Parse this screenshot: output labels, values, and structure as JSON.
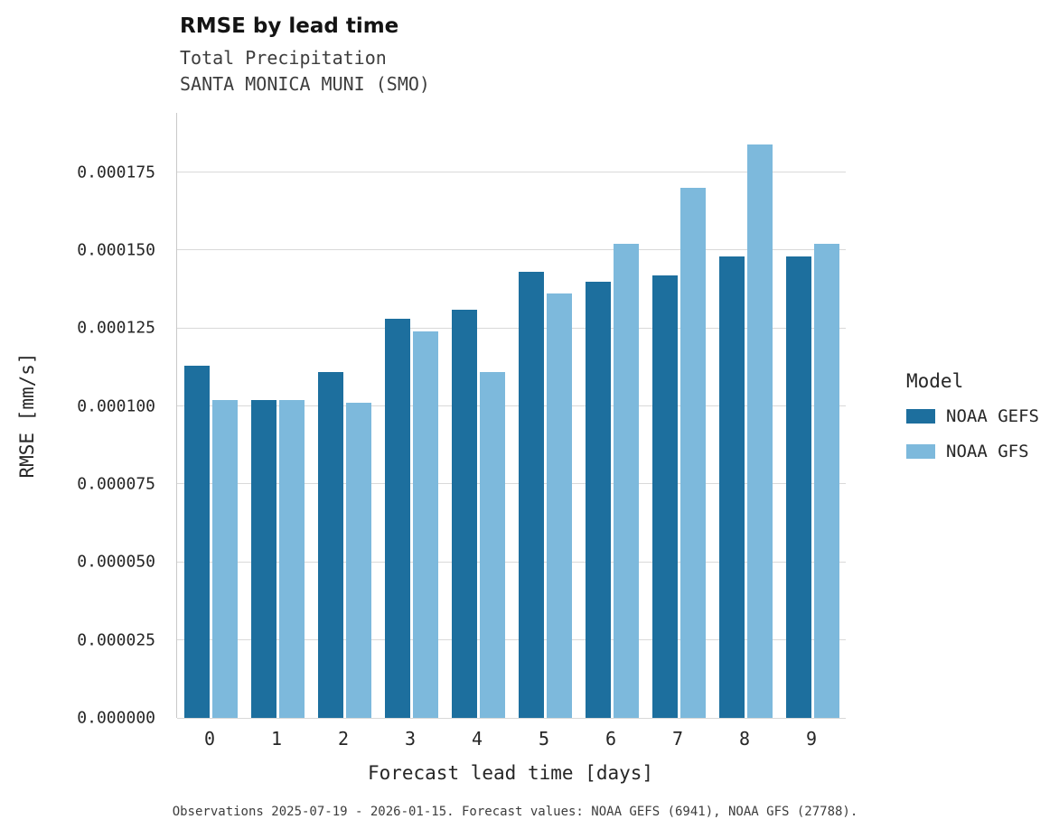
{
  "chart_data": {
    "type": "bar",
    "title": "RMSE by lead time",
    "subtitle1": "Total Precipitation",
    "subtitle2": "SANTA MONICA MUNI (SMO)",
    "xlabel": "Forecast lead time [days]",
    "ylabel": "RMSE [mm/s]",
    "categories": [
      "0",
      "1",
      "2",
      "3",
      "4",
      "5",
      "6",
      "7",
      "8",
      "9"
    ],
    "series": [
      {
        "name": "NOAA GEFS",
        "color": "#1d6f9e",
        "values": [
          0.000113,
          0.000102,
          0.000111,
          0.000128,
          0.000131,
          0.000143,
          0.00014,
          0.000142,
          0.000148,
          0.000148
        ]
      },
      {
        "name": "NOAA GFS",
        "color": "#7db9dc",
        "values": [
          0.000102,
          0.000102,
          0.000101,
          0.000124,
          0.000111,
          0.000136,
          0.000152,
          0.00017,
          0.000184,
          0.000152
        ]
      }
    ],
    "yticks": [
      0,
      2.5e-05,
      5e-05,
      7.5e-05,
      0.0001,
      0.000125,
      0.00015,
      0.000175
    ],
    "ytick_labels": [
      "0.000000",
      "0.000025",
      "0.000050",
      "0.000075",
      "0.000100",
      "0.000125",
      "0.000150",
      "0.000175"
    ],
    "ylim": [
      0,
      0.000194
    ],
    "grid": "horizontal",
    "legend_title": "Model",
    "legend_position": "right",
    "caption": "Observations 2025-07-19 - 2026-01-15. Forecast values: NOAA GEFS (6941), NOAA GFS (27788)."
  }
}
